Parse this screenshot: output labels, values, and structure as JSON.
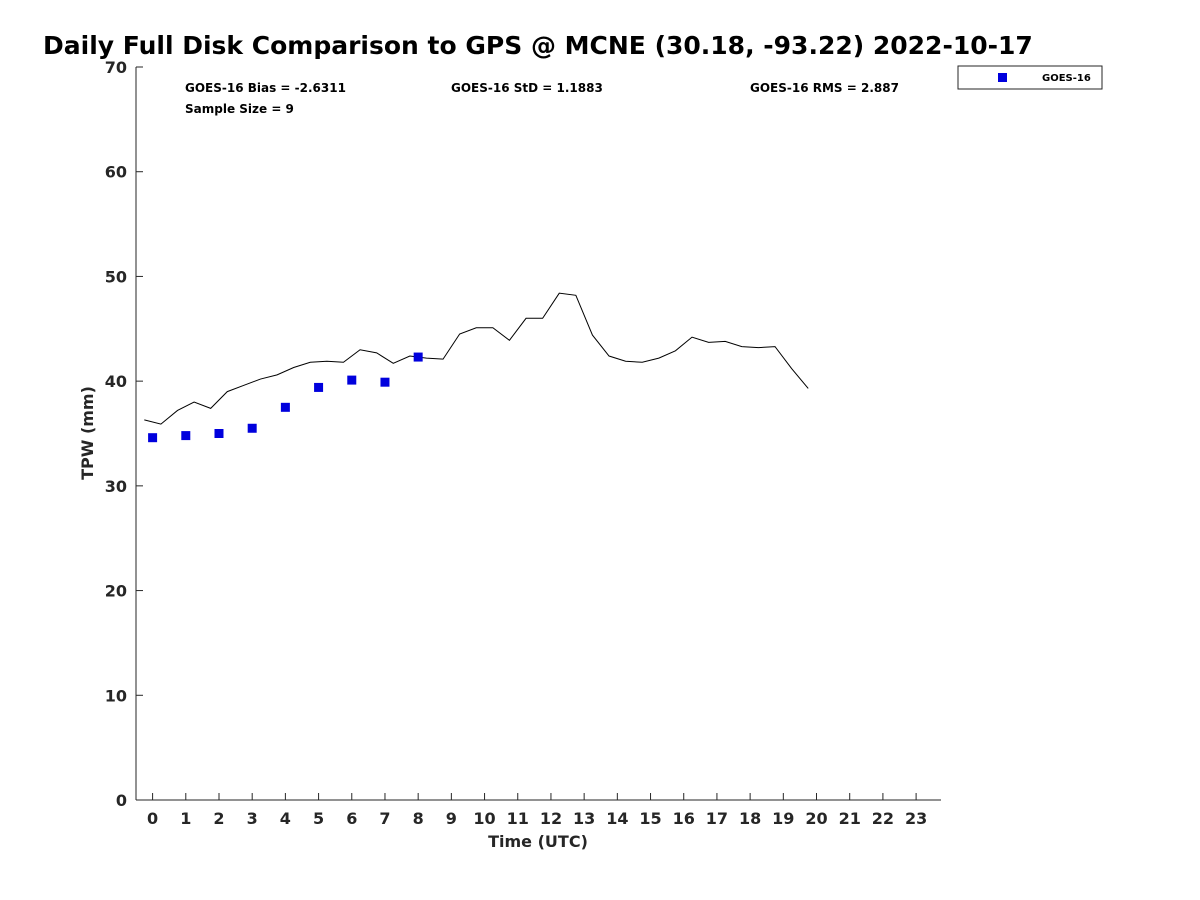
{
  "chart_data": {
    "type": "line",
    "title": "Daily Full Disk Comparison to GPS @ MCNE (30.18, -93.22) 2022-10-17",
    "xlabel": "Time (UTC)",
    "ylabel": "TPW (mm)",
    "xlim": [
      -0.5,
      23.75
    ],
    "ylim": [
      0,
      70
    ],
    "x_ticks": [
      "0",
      "1",
      "2",
      "3",
      "4",
      "5",
      "6",
      "7",
      "8",
      "9",
      "10",
      "11",
      "12",
      "13",
      "14",
      "15",
      "16",
      "17",
      "18",
      "19",
      "20",
      "21",
      "22",
      "23"
    ],
    "y_ticks": [
      "0",
      "10",
      "20",
      "30",
      "40",
      "50",
      "60",
      "70"
    ],
    "grid": false,
    "legend_position": "top-right",
    "legend": [
      "GOES-16"
    ],
    "colors": {
      "goes16": "#0000dd",
      "gps": "#000000"
    },
    "stats": {
      "bias": "GOES-16 Bias = -2.6311",
      "std": "GOES-16 StD = 1.1883",
      "rms": "GOES-16 RMS = 2.887",
      "sample": "Sample Size = 9"
    },
    "series": [
      {
        "kind": "line",
        "x": [
          -0.25,
          0.25,
          0.75,
          1.25,
          1.75,
          2.25,
          2.75,
          3.25,
          3.75,
          4.25,
          4.75,
          5.25,
          5.75,
          6.25,
          6.75,
          7.25,
          7.75,
          8.25,
          8.75,
          9.25,
          9.75,
          10.25,
          10.75,
          11.25,
          11.75,
          12.25,
          12.75,
          13.25,
          13.75,
          14.25,
          14.75,
          15.25,
          15.75,
          16.25,
          16.75,
          17.25,
          17.75,
          18.25,
          18.75,
          19.25,
          19.75
        ],
        "values": [
          36.3,
          35.9,
          37.2,
          38.0,
          37.4,
          39.0,
          39.6,
          40.2,
          40.6,
          41.3,
          41.8,
          41.9,
          41.8,
          43.0,
          42.7,
          41.7,
          42.4,
          42.2,
          42.1,
          44.5,
          45.1,
          45.1,
          43.9,
          46.0,
          46.0,
          48.4,
          48.2,
          44.4,
          42.4,
          41.9,
          41.8,
          42.2,
          42.9,
          44.2,
          43.7,
          43.8,
          43.3,
          43.2,
          43.3,
          41.2,
          39.3
        ]
      },
      {
        "name": "GOES-16",
        "kind": "scatter",
        "x": [
          0,
          1,
          2,
          3,
          4,
          5,
          6,
          7,
          8
        ],
        "values": [
          34.6,
          34.8,
          35.0,
          35.5,
          37.5,
          39.4,
          40.1,
          39.9,
          42.3
        ]
      }
    ]
  }
}
